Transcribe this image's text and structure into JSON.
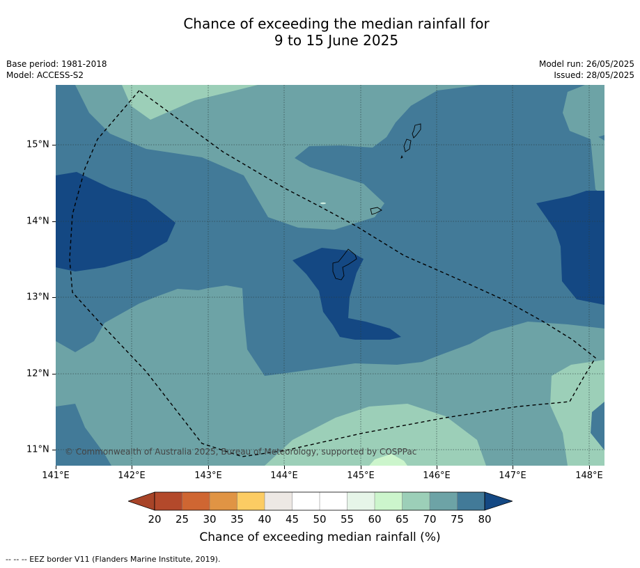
{
  "title": {
    "line1": "Chance of exceeding the median rainfall for",
    "line2": "9 to 15 June 2025"
  },
  "meta_left": {
    "base_period": "Base period: 1981-2018",
    "model": "Model: ACCESS-S2"
  },
  "meta_right": {
    "model_run": "Model run: 26/05/2025",
    "issued": "Issued: 28/05/2025"
  },
  "map": {
    "x_ticks": [
      "141°E",
      "142°E",
      "143°E",
      "144°E",
      "145°E",
      "146°E",
      "147°E",
      "148°E"
    ],
    "y_ticks": [
      "15°N",
      "14°N",
      "13°N",
      "12°N",
      "11°N"
    ],
    "copyright": "© Commonwealth of Australia 2025, Bureau of Meteorology, supported by COSPPac",
    "colors": {
      "c65_70": "#9ccfb8",
      "c70_75": "#6da3a6",
      "c75_80": "#427a98",
      "c80_plus": "#144883",
      "c60_65": "#ccf5cc"
    }
  },
  "colorbar": {
    "labels": [
      "20",
      "25",
      "30",
      "35",
      "40",
      "45",
      "50",
      "55",
      "60",
      "65",
      "70",
      "75",
      "80"
    ],
    "colors": [
      "#a84428",
      "#b3492b",
      "#cf6632",
      "#e09444",
      "#fccc63",
      "#ede8e4",
      "#ffffff",
      "#ffffff",
      "#e6f5e8",
      "#ccf5cc",
      "#9ccfb8",
      "#6da3a6",
      "#427a98",
      "#144883"
    ],
    "title": "Chance of exceeding median rainfall (%)"
  },
  "footnote": "--  --  -- EEZ border V11 (Flanders Marine Institute, 2019)."
}
